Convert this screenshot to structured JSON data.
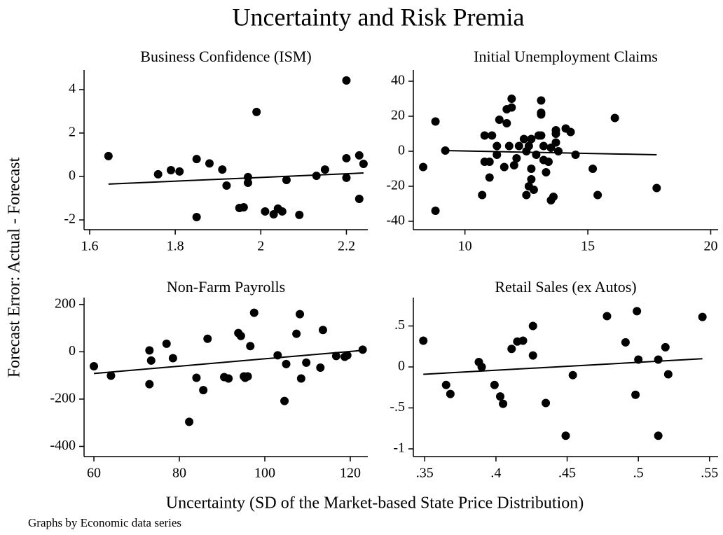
{
  "title": "Uncertainty and Risk Premia",
  "ylabel": "Forecast Error: Actual - Forecast",
  "xlabel": "Uncertainty (SD of the Market-based State Price Distribution)",
  "note": "Graphs by Economic data series",
  "chart_data": [
    {
      "type": "scatter",
      "title": "Business Confidence (ISM)",
      "color": "#000000",
      "x": [
        1.644,
        1.76,
        1.79,
        1.81,
        1.85,
        1.85,
        1.88,
        1.91,
        1.92,
        1.99,
        1.97,
        1.97,
        1.95,
        1.96,
        2.01,
        2.03,
        2.04,
        2.05,
        2.06,
        2.09,
        2.13,
        2.15,
        2.2,
        2.2,
        2.2,
        2.23,
        2.24,
        2.23
      ],
      "y": [
        0.94,
        0.1,
        0.29,
        0.23,
        0.8,
        -1.87,
        0.6,
        0.32,
        -0.42,
        2.97,
        -0.03,
        -0.29,
        -1.45,
        -1.42,
        -1.61,
        -1.74,
        -1.48,
        -1.61,
        -0.16,
        -1.77,
        0.03,
        0.32,
        4.42,
        0.84,
        -0.06,
        0.97,
        0.58,
        -1.03
      ],
      "fit": {
        "x": [
          1.644,
          2.24
        ],
        "y": [
          -0.35,
          0.16
        ]
      },
      "xlim": [
        1.587,
        2.25
      ],
      "ylim": [
        -2.45,
        4.9
      ],
      "xticks": [
        1.6,
        1.8,
        2,
        2.2
      ],
      "yticks": [
        -2,
        0,
        2,
        4
      ]
    },
    {
      "type": "scatter",
      "title": "Initial Unemployment Claims",
      "color": "#000000",
      "x": [
        8.3,
        8.8,
        8.8,
        9.2,
        10.7,
        10.8,
        10.8,
        11.0,
        11.0,
        11.1,
        11.3,
        11.3,
        11.4,
        11.6,
        11.7,
        11.7,
        11.9,
        11.9,
        11.8,
        12.1,
        12.0,
        12.2,
        12.4,
        12.5,
        12.5,
        12.6,
        12.7,
        12.7,
        12.6,
        12.7,
        12.8,
        12.9,
        13.0,
        13.1,
        13.1,
        13.1,
        13.1,
        13.2,
        13.3,
        13.2,
        13.4,
        13.5,
        13.5,
        13.6,
        13.7,
        13.7,
        13.7,
        13.8,
        14.1,
        14.3,
        14.5,
        15.2,
        15.4,
        16.1,
        17.8
      ],
      "y": [
        -9,
        -34,
        17,
        0.4,
        -25,
        9,
        -6,
        -6,
        -15,
        9,
        3,
        -2,
        18,
        -9,
        16,
        24,
        25,
        30,
        3,
        -4,
        -8,
        3,
        7,
        -25,
        0,
        -20,
        -16,
        -10,
        3,
        7,
        -22,
        -2,
        9,
        29,
        22,
        21,
        9,
        -5,
        -12,
        3,
        -6,
        2,
        -28,
        -26,
        5,
        10,
        12,
        0,
        13,
        11,
        -2,
        -10,
        -25,
        19,
        -21
      ],
      "fit": {
        "x": [
          9.1,
          17.8
        ],
        "y": [
          0.4,
          -2
        ]
      },
      "xlim": [
        7.9,
        20.3
      ],
      "ylim": [
        -44.8,
        46.4
      ],
      "xticks": [
        10,
        15,
        20
      ],
      "yticks": [
        -40,
        -20,
        0,
        20,
        40
      ]
    },
    {
      "type": "scatter",
      "title": "Non-Farm Payrolls",
      "color": "#000000",
      "x": [
        60,
        64,
        73,
        73.4,
        73,
        77,
        78.5,
        86.6,
        84,
        85.6,
        82.3,
        90.5,
        91.5,
        93.8,
        94.4,
        95.1,
        95.4,
        96,
        96.6,
        97.5,
        103,
        105,
        104.6,
        107.4,
        108.2,
        108.5,
        109.7,
        113,
        113.6,
        116.7,
        118.7,
        119.3,
        122.9
      ],
      "y": [
        -61,
        -101,
        6,
        -37,
        -137,
        34,
        -27,
        55,
        -110,
        -162,
        -296,
        -107,
        -113,
        79,
        67,
        -104,
        -110,
        -104,
        24,
        165,
        -15,
        -52,
        -208,
        76,
        159,
        -113,
        -46,
        -67,
        92,
        -18,
        -21,
        -15,
        9
      ],
      "fit": {
        "x": [
          60,
          122.9
        ],
        "y": [
          -92,
          6
        ]
      },
      "xlim": [
        57.7,
        124.1
      ],
      "ylim": [
        -443,
        229
      ],
      "xticks": [
        60,
        80,
        100,
        120
      ],
      "yticks": [
        -400,
        -200,
        0,
        200
      ]
    },
    {
      "type": "scatter",
      "title": "Retail Sales (ex Autos)",
      "color": "#000000",
      "x": [
        0.349,
        0.365,
        0.368,
        0.388,
        0.39,
        0.399,
        0.403,
        0.405,
        0.411,
        0.415,
        0.419,
        0.426,
        0.426,
        0.435,
        0.449,
        0.454,
        0.478,
        0.491,
        0.499,
        0.498,
        0.5,
        0.514,
        0.514,
        0.519,
        0.521,
        0.545
      ],
      "y": [
        0.32,
        -0.22,
        -0.33,
        0.06,
        0.0,
        -0.22,
        -0.36,
        -0.45,
        0.22,
        0.31,
        0.32,
        0.5,
        0.14,
        -0.44,
        -0.84,
        -0.1,
        0.62,
        0.3,
        0.68,
        -0.34,
        0.09,
        0.09,
        -0.84,
        0.24,
        -0.09,
        0.61
      ],
      "fit": {
        "x": [
          0.349,
          0.545
        ],
        "y": [
          -0.09,
          0.1
        ]
      },
      "xlim": [
        0.342,
        0.556
      ],
      "ylim": [
        -1.094,
        0.846
      ],
      "xticks": [
        {
          "value": 0.35,
          "label": ".35"
        },
        {
          "value": 0.4,
          "label": ".4"
        },
        {
          "value": 0.45,
          "label": ".45"
        },
        {
          "value": 0.5,
          "label": ".5"
        },
        {
          "value": 0.55,
          "label": ".55"
        }
      ],
      "yticks": [
        {
          "value": -1,
          "label": "-1"
        },
        {
          "value": -0.5,
          "label": "-.5"
        },
        0,
        {
          "value": 0.5,
          "label": ".5"
        }
      ]
    }
  ]
}
